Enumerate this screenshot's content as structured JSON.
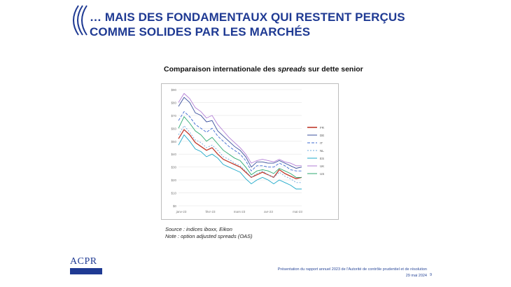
{
  "slide": {
    "title": "… MAIS DES FONDAMENTAUX QUI RESTENT PERÇUS COMME SOLIDES PAR LES MARCHÉS",
    "chart_title_pre": "Comparaison internationale des ",
    "chart_title_em": "spreads",
    "chart_title_post": " sur dette senior",
    "source": "Source : indices iboxx, Eikon",
    "note": "Note : option adjusted spreads (OAS)",
    "footer_line1": "Présentation du rapport annuel 2023 de l'Autorité de contrôle prudentiel et de résolution",
    "footer_date": "29 mai 2024",
    "page_number": "9",
    "logo_text": "ACPR"
  },
  "chart_data": {
    "type": "line",
    "ylim": [
      0,
      90
    ],
    "yticks": [
      "$0",
      "$10",
      "$20",
      "$30",
      "$40",
      "$50",
      "$60",
      "$70",
      "$80",
      "$90"
    ],
    "xticks": [
      "janv-23",
      "févr-23",
      "mars-23",
      "avr-23",
      "mai-23"
    ],
    "series": [
      {
        "name": "FR",
        "color": "#c0392b",
        "dash": "",
        "values": [
          52,
          59,
          55,
          49,
          46,
          43,
          45,
          40,
          36,
          34,
          32,
          30,
          26,
          22,
          24,
          26,
          24,
          22,
          28,
          25,
          23,
          21,
          22
        ]
      },
      {
        "name": "DE",
        "color": "#3a4f9c",
        "dash": "",
        "values": [
          77,
          84,
          80,
          72,
          70,
          65,
          66,
          58,
          54,
          50,
          46,
          43,
          38,
          30,
          34,
          34,
          33,
          33,
          35,
          33,
          31,
          29,
          30
        ]
      },
      {
        "name": "IT",
        "color": "#3e6bd1",
        "dash": "4,2",
        "values": [
          66,
          73,
          69,
          63,
          60,
          57,
          60,
          54,
          50,
          46,
          43,
          40,
          35,
          27,
          31,
          31,
          30,
          30,
          33,
          31,
          28,
          27,
          27
        ]
      },
      {
        "name": "NL",
        "color": "#6fa8dc",
        "dash": "2,2",
        "values": [
          55,
          62,
          57,
          51,
          49,
          45,
          47,
          43,
          38,
          36,
          33,
          31,
          27,
          22,
          25,
          27,
          24,
          22,
          26,
          23,
          21,
          18,
          18
        ]
      },
      {
        "name": "ES",
        "color": "#1ca8c9",
        "dash": "",
        "values": [
          47,
          55,
          50,
          44,
          42,
          38,
          40,
          37,
          32,
          30,
          28,
          26,
          21,
          17,
          20,
          22,
          20,
          17,
          20,
          18,
          16,
          13,
          13
        ]
      },
      {
        "name": "UK",
        "color": "#b27ed6",
        "dash": "",
        "values": [
          80,
          87,
          83,
          76,
          73,
          68,
          70,
          63,
          58,
          53,
          49,
          45,
          40,
          33,
          35,
          36,
          35,
          34,
          36,
          34,
          33,
          31,
          31
        ]
      },
      {
        "name": "US",
        "color": "#2eaa72",
        "dash": "",
        "values": [
          60,
          69,
          64,
          58,
          55,
          50,
          53,
          48,
          43,
          40,
          37,
          35,
          30,
          24,
          27,
          28,
          27,
          25,
          29,
          27,
          25,
          22,
          22
        ]
      }
    ]
  },
  "colors": {
    "title": "#1f3a93",
    "frame": "#bdbdbd"
  }
}
